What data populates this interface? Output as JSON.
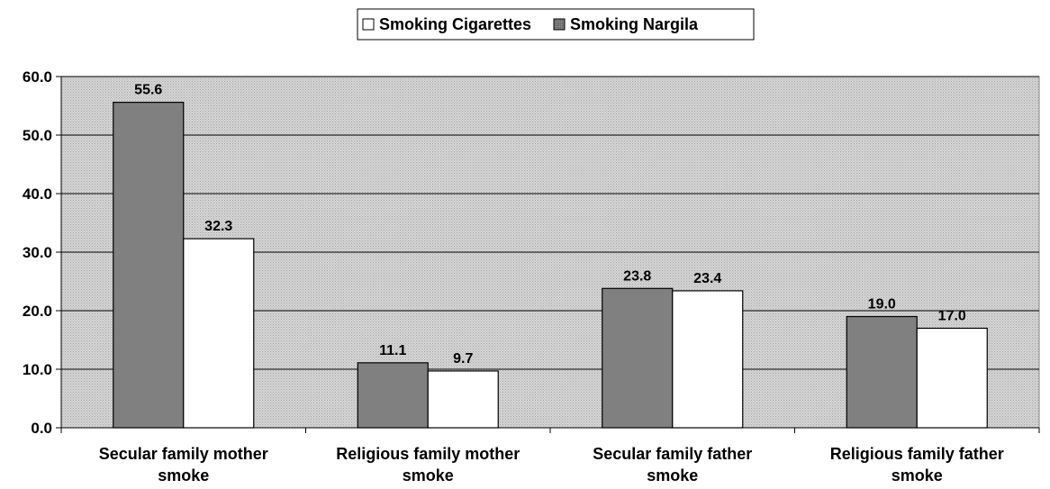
{
  "chart_data": {
    "type": "bar",
    "categories": [
      [
        "Secular family mother",
        "smoke"
      ],
      [
        "Religious family mother",
        "smoke"
      ],
      [
        "Secular family father",
        "smoke"
      ],
      [
        "Religious family father",
        "smoke"
      ]
    ],
    "series": [
      {
        "name": "Smoking Nargila",
        "color": "#808080",
        "values": [
          55.6,
          11.1,
          23.8,
          19.0
        ]
      },
      {
        "name": "Smoking Cigarettes",
        "color": "#ffffff",
        "values": [
          32.3,
          9.7,
          23.4,
          17.0
        ]
      }
    ],
    "legend_order": [
      1,
      0
    ],
    "legend_position": "top-center",
    "ylim": [
      0,
      60
    ],
    "yticks": [
      "0.0",
      "10.0",
      "20.0",
      "30.0",
      "40.0",
      "50.0",
      "60.0"
    ],
    "ytick_values": [
      0,
      10,
      20,
      30,
      40,
      50,
      60
    ],
    "grid": true,
    "plot_background": "#d9d9d9",
    "data_labels": true
  }
}
